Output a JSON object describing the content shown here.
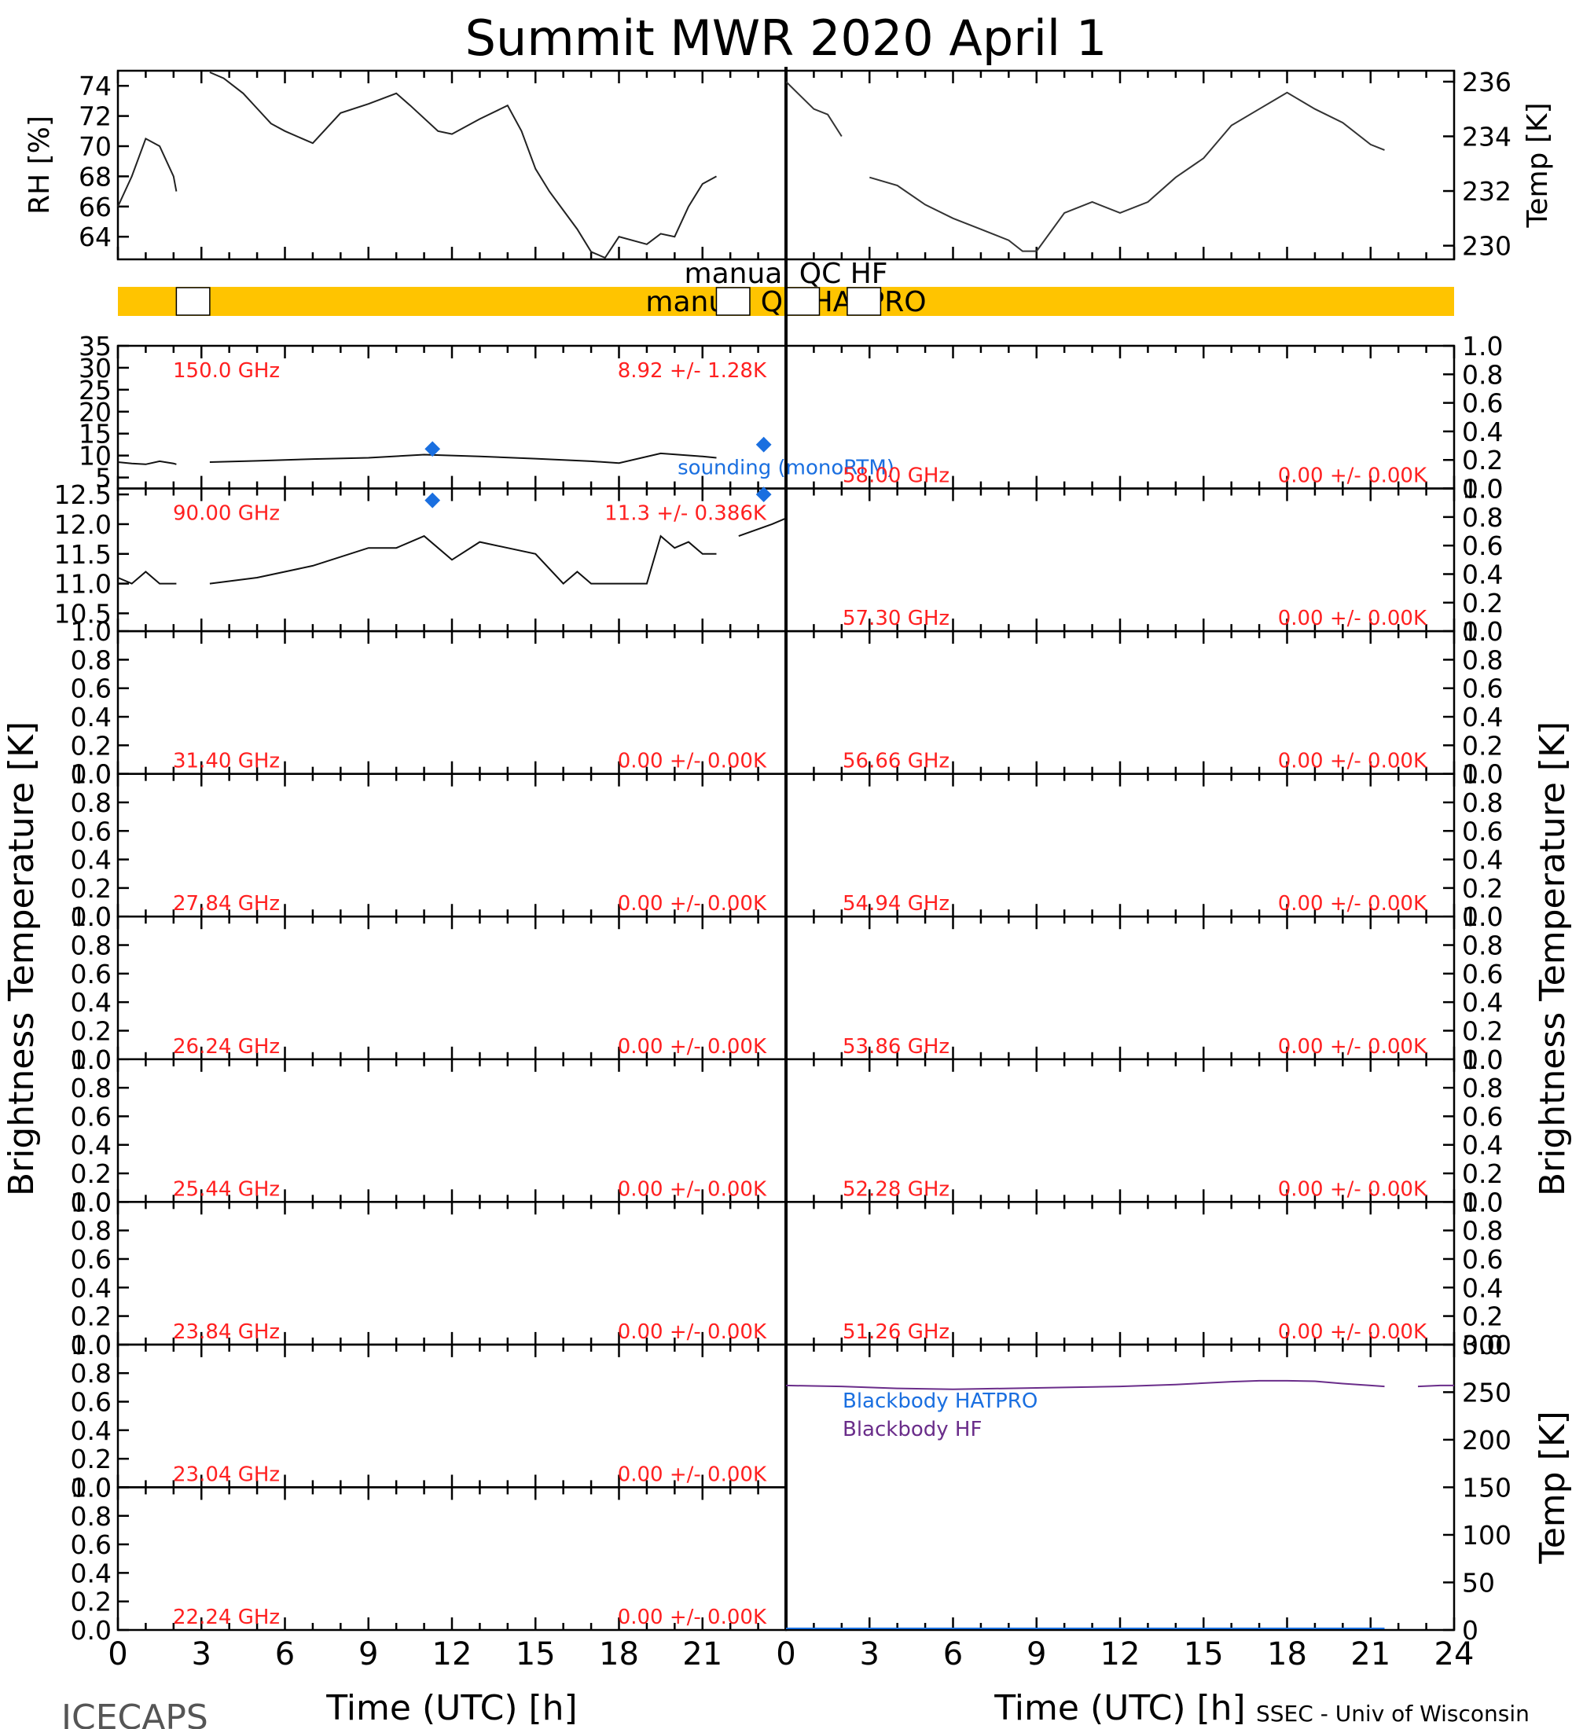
{
  "title": "Summit MWR 2020 April   1",
  "footer": {
    "left": "ICECAPS",
    "right": "SSEC - Univ of Wisconsin"
  },
  "xlabel": "Time (UTC) [h]",
  "colors": {
    "qc_bar": "#ffc400",
    "red_text": "#ff2020",
    "hatpro": "#1a6fe0",
    "hf": "#6a2d8a"
  },
  "x_ticks": [
    "0",
    "3",
    "6",
    "9",
    "12",
    "15",
    "18",
    "21",
    "24"
  ],
  "qc": {
    "hf_label": "manual QC HF",
    "hatpro_label": "manual QC HATPRO",
    "hatpro_gaps_hours": [
      [
        2.1,
        3.3
      ],
      [
        21.5,
        22.7
      ],
      [
        24.0,
        25.2
      ],
      [
        26.2,
        27.4
      ]
    ]
  },
  "chart_data": [
    {
      "type": "line",
      "id": "rh",
      "ylabel": "RH [%]",
      "ylim": [
        62.5,
        75
      ],
      "yticks": [
        "74",
        "72",
        "70",
        "68",
        "66",
        "64"
      ],
      "x": [
        0,
        0.5,
        1,
        1.5,
        2,
        2.1,
        3.3,
        3.8,
        4.5,
        5,
        5.5,
        6,
        7,
        8,
        9,
        10,
        10.5,
        11.5,
        12,
        13,
        14,
        14.5,
        15,
        15.5,
        16.5,
        17,
        17.5,
        18,
        19,
        19.5,
        20,
        20.5,
        21,
        21.5
      ],
      "y": [
        66,
        68,
        70.5,
        70,
        68,
        67,
        75,
        74.5,
        73.5,
        72.5,
        71.5,
        71,
        70.2,
        72.2,
        72.8,
        73.5,
        72.7,
        71,
        70.8,
        71.8,
        72.7,
        71,
        68.5,
        67,
        64.5,
        63,
        62.5,
        64,
        63.5,
        64.2,
        64,
        66,
        67.5,
        68
      ]
    },
    {
      "type": "line",
      "id": "temp",
      "ylabel": "Temp [K]",
      "ylim": [
        229.5,
        236.4
      ],
      "yticks": [
        "236",
        "234",
        "232",
        "230"
      ],
      "x": [
        0,
        0.5,
        1,
        1.5,
        2,
        3,
        4,
        5,
        6,
        7,
        7.5,
        8,
        8.5,
        9,
        10,
        11,
        12,
        13,
        14,
        15,
        16,
        17,
        18,
        19,
        20,
        21,
        21.5
      ],
      "y": [
        236,
        235.5,
        235,
        234.8,
        234,
        232.5,
        232.2,
        231.5,
        231,
        230.6,
        230.4,
        230.2,
        229.8,
        229.8,
        231.2,
        231.6,
        231.2,
        231.6,
        232.5,
        233.2,
        234.4,
        235,
        235.6,
        235,
        234.5,
        233.7,
        233.5
      ]
    },
    {
      "type": "line",
      "id": "ch150",
      "freq": "150.0 GHz",
      "stats": "8.92 +/-  1.28K",
      "ylim": [
        2.5,
        35
      ],
      "yticks": [
        "35",
        "30",
        "25",
        "20",
        "15",
        "10",
        "5"
      ],
      "sounding_label": "sounding (monoRTM)",
      "sounding_x": [
        11.3,
        23.2
      ],
      "sounding_y": [
        11.5,
        12.5
      ],
      "x": [
        0,
        0.5,
        1,
        1.5,
        2,
        2.1,
        3.3,
        5,
        7,
        9,
        11,
        13,
        15,
        17,
        18,
        19.5,
        21,
        21.5
      ],
      "y": [
        8.5,
        8.2,
        8,
        8.7,
        8.2,
        8,
        8.5,
        8.8,
        9.2,
        9.5,
        10.2,
        9.8,
        9.3,
        8.7,
        8.3,
        10.5,
        9.8,
        9.5
      ]
    },
    {
      "type": "line",
      "id": "ch90",
      "freq": "90.00 GHz",
      "stats": "11.3 +/- 0.386K",
      "ylim": [
        10.2,
        12.6
      ],
      "yticks": [
        "12.5",
        "12.0",
        "11.5",
        "11.0",
        "10.5"
      ],
      "sounding_x": [
        11.3,
        23.2
      ],
      "sounding_y": [
        12.4,
        12.5
      ],
      "x": [
        0,
        0.5,
        1,
        1.5,
        2,
        2.1,
        3.3,
        5,
        7,
        9,
        10,
        11,
        12,
        13,
        14,
        15,
        16,
        16.5,
        17,
        18,
        19,
        19.5,
        20,
        20.5,
        21,
        21.5,
        22.3,
        23.5,
        24
      ],
      "y": [
        11.1,
        11.0,
        11.2,
        11.0,
        11.0,
        11.0,
        11.0,
        11.1,
        11.3,
        11.6,
        11.6,
        11.8,
        11.4,
        11.7,
        11.6,
        11.5,
        11.0,
        11.2,
        11.0,
        11.0,
        11.0,
        11.8,
        11.6,
        11.7,
        11.5,
        11.5,
        11.8,
        12.0,
        12.1
      ]
    },
    {
      "id": "ch31",
      "freq": "31.40 GHz",
      "stats": "0.00 +/-  0.00K"
    },
    {
      "id": "ch27",
      "freq": "27.84 GHz",
      "stats": "0.00 +/-  0.00K"
    },
    {
      "id": "ch26",
      "freq": "26.24 GHz",
      "stats": "0.00 +/-  0.00K"
    },
    {
      "id": "ch25",
      "freq": "25.44 GHz",
      "stats": "0.00 +/-  0.00K"
    },
    {
      "id": "ch23b",
      "freq": "23.84 GHz",
      "stats": "0.00 +/-  0.00K"
    },
    {
      "id": "ch23a",
      "freq": "23.04 GHz",
      "stats": "0.00 +/-  0.00K"
    },
    {
      "id": "ch22",
      "freq": "22.24 GHz",
      "stats": "0.00 +/-  0.00K"
    },
    {
      "id": "ch58",
      "freq": "58.00 GHz",
      "stats": "0.00 +/-  0.00K"
    },
    {
      "id": "ch57",
      "freq": "57.30 GHz",
      "stats": "0.00 +/-  0.00K"
    },
    {
      "id": "ch56",
      "freq": "56.66 GHz",
      "stats": "0.00 +/-  0.00K"
    },
    {
      "id": "ch54",
      "freq": "54.94 GHz",
      "stats": "0.00 +/-  0.00K"
    },
    {
      "id": "ch53",
      "freq": "53.86 GHz",
      "stats": "0.00 +/-  0.00K"
    },
    {
      "id": "ch52",
      "freq": "52.28 GHz",
      "stats": "0.00 +/-  0.00K"
    },
    {
      "id": "ch51",
      "freq": "51.26 GHz",
      "stats": "0.00 +/-  0.00K"
    },
    {
      "type": "line",
      "id": "blackbody",
      "ylabel": "Temp [K]",
      "ylim": [
        0,
        300
      ],
      "yticks": [
        "300",
        "250",
        "200",
        "150",
        "100",
        "50",
        "0"
      ],
      "series": [
        {
          "name": "Blackbody HATPRO",
          "x": [
            0,
            2,
            4,
            6,
            8,
            10,
            12,
            14,
            16,
            18,
            20,
            21,
            21.5
          ],
          "y": [
            0,
            0,
            0,
            0,
            0,
            0,
            0,
            0,
            0,
            0,
            0,
            0,
            0
          ]
        },
        {
          "name": "Blackbody HF",
          "x": [
            0,
            1,
            2,
            4,
            6,
            8,
            10,
            12,
            14,
            16,
            17,
            18,
            19,
            20,
            21,
            21.5,
            22.7,
            23.5,
            24
          ],
          "y": [
            257,
            256.5,
            256,
            254,
            253,
            254,
            255,
            256,
            258,
            261,
            262,
            262,
            261.5,
            259,
            257,
            256,
            256,
            257,
            257
          ]
        }
      ]
    }
  ],
  "empty_yticks": [
    "1.0",
    "0.8",
    "0.6",
    "0.4",
    "0.2",
    "0.0"
  ],
  "brightness_label": "Brightness Temperature [K]"
}
